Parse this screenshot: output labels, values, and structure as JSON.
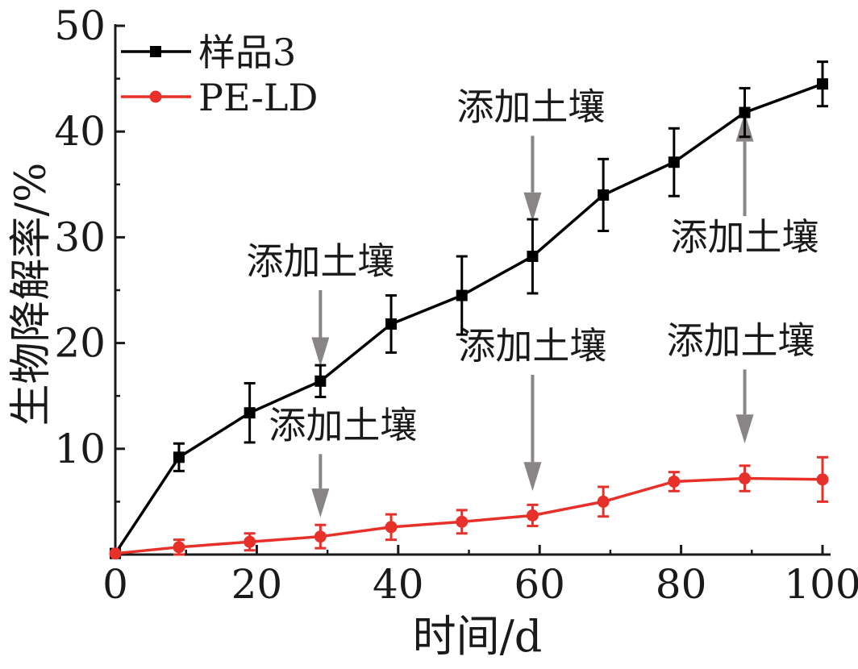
{
  "chart_data": {
    "type": "line",
    "xlabel": "时间/d",
    "ylabel": "生物降解率/%",
    "xlim": [
      0,
      100
    ],
    "ylim": [
      0,
      50
    ],
    "xticks": [
      "0",
      "20",
      "40",
      "60",
      "80",
      "100"
    ],
    "yticks": [
      "10",
      "20",
      "30",
      "40",
      "50"
    ],
    "grid": false,
    "legend_position": "top-left",
    "series": [
      {
        "name": "样品3",
        "color": "#000000",
        "marker": "square",
        "x": [
          0,
          9,
          19,
          29,
          39,
          49,
          59,
          69,
          79,
          89,
          100
        ],
        "y": [
          0.1,
          9.2,
          13.4,
          16.4,
          21.8,
          24.5,
          28.2,
          34.0,
          37.1,
          41.8,
          44.5
        ],
        "err": [
          0,
          1.3,
          2.8,
          1.5,
          2.7,
          3.7,
          3.5,
          3.4,
          3.2,
          2.3,
          2.1
        ]
      },
      {
        "name": "PE-LD",
        "color": "#e8302a",
        "marker": "circle",
        "x": [
          0,
          9,
          19,
          29,
          39,
          49,
          59,
          69,
          79,
          89,
          100
        ],
        "y": [
          0.1,
          0.7,
          1.2,
          1.7,
          2.6,
          3.1,
          3.7,
          5.0,
          6.9,
          7.2,
          7.1
        ],
        "err": [
          0,
          0.7,
          0.8,
          1.1,
          1.2,
          1.1,
          1.0,
          1.4,
          0.9,
          1.2,
          2.1
        ]
      }
    ],
    "annotations": [
      {
        "text": "添加土壤",
        "series": "样品3",
        "arrow_x": 29,
        "arrow_from_y": 25.0,
        "arrow_to_y": 17.8,
        "direction": "down"
      },
      {
        "text": "添加土壤",
        "series": "样品3",
        "arrow_x": 59,
        "arrow_from_y": 39.6,
        "arrow_to_y": 31.5,
        "direction": "down"
      },
      {
        "text": "添加土壤",
        "series": "样品3",
        "arrow_x": 89,
        "arrow_from_y": 32.0,
        "arrow_to_y": 41.8,
        "direction": "up"
      },
      {
        "text": "添加土壤",
        "series": "PE-LD",
        "arrow_x": 29,
        "arrow_from_y": 9.5,
        "arrow_to_y": 3.5,
        "direction": "down"
      },
      {
        "text": "添加土壤",
        "series": "PE-LD",
        "arrow_x": 59,
        "arrow_from_y": 17.0,
        "arrow_to_y": 6.0,
        "direction": "down"
      },
      {
        "text": "添加土壤",
        "series": "PE-LD",
        "arrow_x": 89,
        "arrow_from_y": 17.5,
        "arrow_to_y": 10.5,
        "direction": "down"
      }
    ]
  }
}
